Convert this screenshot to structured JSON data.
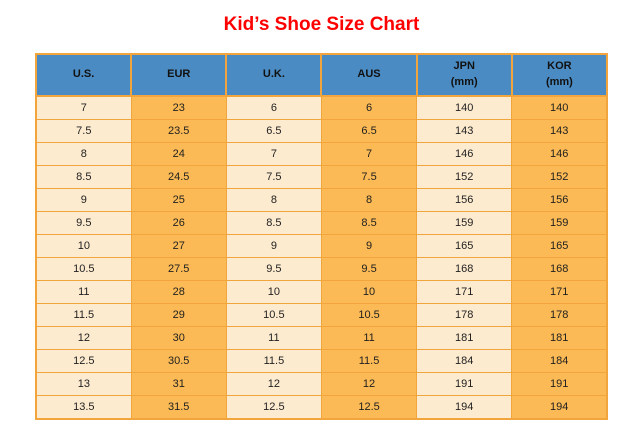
{
  "page": {
    "title": "Kid’s Shoe Size Chart"
  },
  "colors": {
    "page_bg": "#FFFFFF",
    "title": "#FF0000",
    "header_bg": "#4A8BC3",
    "header_text": "#111111",
    "cell_light": "#FDEBD0",
    "cell_accent": "#FBBA55",
    "border": "#F2A53C",
    "cell_text": "#1F1F1F"
  },
  "chart_data": {
    "type": "table",
    "title": "Kid’s Shoe Size Chart",
    "columns": [
      {
        "label": "U.S.",
        "sublabel": ""
      },
      {
        "label": "EUR",
        "sublabel": ""
      },
      {
        "label": "U.K.",
        "sublabel": ""
      },
      {
        "label": "AUS",
        "sublabel": ""
      },
      {
        "label": "JPN",
        "sublabel": "(mm)"
      },
      {
        "label": "KOR",
        "sublabel": "(mm)"
      }
    ],
    "column_styles": [
      "light",
      "accent",
      "light",
      "accent",
      "light",
      "accent"
    ],
    "rows": [
      [
        "7",
        "23",
        "6",
        "6",
        "140",
        "140"
      ],
      [
        "7.5",
        "23.5",
        "6.5",
        "6.5",
        "143",
        "143"
      ],
      [
        "8",
        "24",
        "7",
        "7",
        "146",
        "146"
      ],
      [
        "8.5",
        "24.5",
        "7.5",
        "7.5",
        "152",
        "152"
      ],
      [
        "9",
        "25",
        "8",
        "8",
        "156",
        "156"
      ],
      [
        "9.5",
        "26",
        "8.5",
        "8.5",
        "159",
        "159"
      ],
      [
        "10",
        "27",
        "9",
        "9",
        "165",
        "165"
      ],
      [
        "10.5",
        "27.5",
        "9.5",
        "9.5",
        "168",
        "168"
      ],
      [
        "11",
        "28",
        "10",
        "10",
        "171",
        "171"
      ],
      [
        "11.5",
        "29",
        "10.5",
        "10.5",
        "178",
        "178"
      ],
      [
        "12",
        "30",
        "11",
        "11",
        "181",
        "181"
      ],
      [
        "12.5",
        "30.5",
        "11.5",
        "11.5",
        "184",
        "184"
      ],
      [
        "13",
        "31",
        "12",
        "12",
        "191",
        "191"
      ],
      [
        "13.5",
        "31.5",
        "12.5",
        "12.5",
        "194",
        "194"
      ]
    ]
  }
}
